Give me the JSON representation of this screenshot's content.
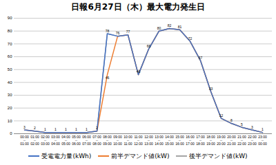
{
  "chart_data": {
    "type": "line",
    "title": "日報6月27日（木）最大電力発生日",
    "categories": [
      "00:00\n～\n01:00",
      "01:00\n～\n02:00",
      "02:00\n～\n03:00",
      "03:00\n～\n04:00",
      "04:00\n～\n05:00",
      "05:00\n～\n06:00",
      "06:00\n～\n07:00",
      "07:00\n～\n08:00",
      "08:00\n～\n09:00",
      "09:00\n～\n10:00",
      "10:00\n～\n11:00",
      "11:00\n～\n12:00",
      "12:00\n～\n13:00",
      "13:00\n～\n14:00",
      "14:00\n～\n15:00",
      "15:00\n～\n16:00",
      "16:00\n～\n17:00",
      "17:00\n～\n18:00",
      "18:00\n～\n19:00",
      "19:00\n～\n20:00",
      "20:00\n～\n21:00",
      "21:00\n～\n22:00",
      "22:00\n～\n23:00",
      "23:00\n～\n00:00"
    ],
    "series": [
      {
        "name": "受電電力量(kWh)",
        "color": "#4472C4",
        "data_labels": true,
        "values": [
          3,
          2,
          1,
          1,
          1,
          1,
          1,
          2,
          78,
          76,
          77,
          46,
          66,
          80,
          82,
          81,
          72,
          57,
          33,
          12,
          8,
          5,
          3,
          1
        ]
      },
      {
        "name": "前半デマンド値(kW)",
        "color": "#ED7D31",
        "values": [
          3,
          2,
          1,
          1,
          1,
          1,
          1,
          2,
          46,
          76,
          77,
          46,
          66,
          80,
          82,
          81,
          72,
          57,
          33,
          12,
          8,
          5,
          3,
          1
        ]
      },
      {
        "name": "後半デマンド値(kW)",
        "color": "#A5A5A5",
        "values": [
          3,
          2,
          1,
          1,
          1,
          1,
          1,
          2,
          78,
          76,
          77,
          46,
          66,
          80,
          82,
          81,
          72,
          57,
          33,
          12,
          8,
          5,
          3,
          1
        ]
      }
    ],
    "annotations": [
      {
        "text": "46",
        "x": "08:00\n～\n09:00",
        "y": 46
      }
    ],
    "ylim": [
      0,
      90
    ],
    "yticks": [
      0,
      10,
      20,
      30,
      40,
      50,
      60,
      70,
      80,
      90
    ],
    "grid": true
  }
}
